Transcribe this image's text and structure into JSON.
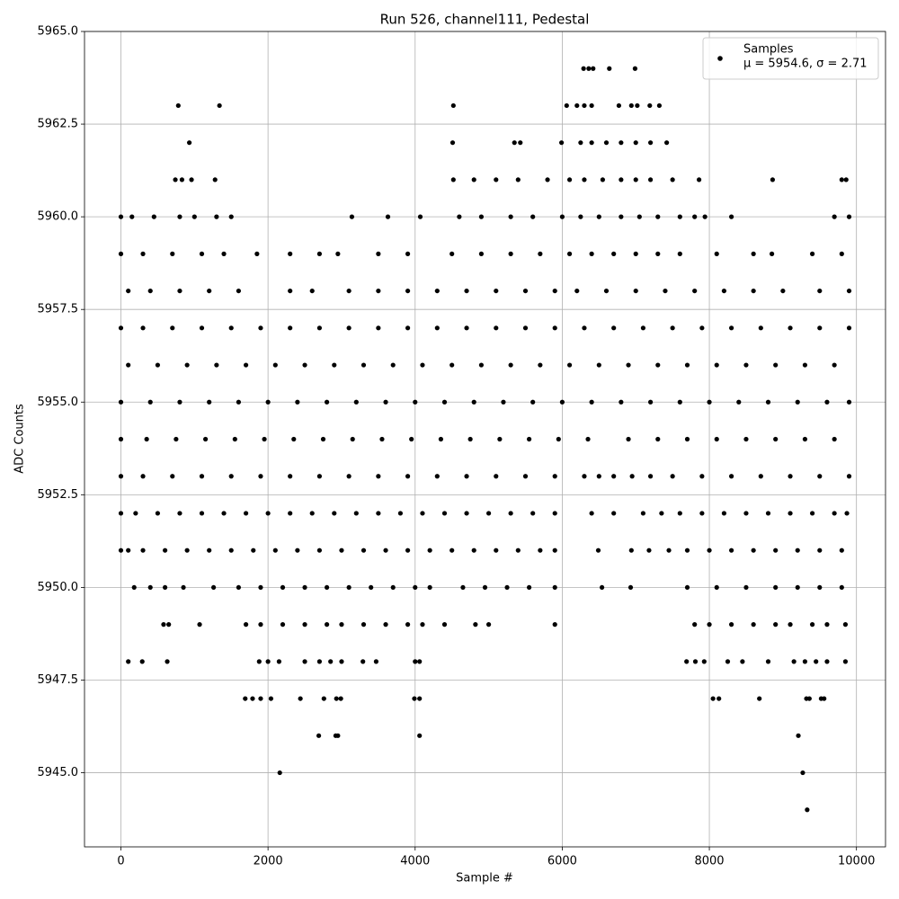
{
  "chart_data": {
    "type": "scatter",
    "title": "Run 526, channel111, Pedestal",
    "xlabel": "Sample #",
    "ylabel": "ADC Counts",
    "xlim": [
      -495,
      10395
    ],
    "ylim": [
      5943,
      5965
    ],
    "xticks": [
      0,
      2000,
      4000,
      6000,
      8000,
      10000
    ],
    "yticks": [
      {
        "value": 5945,
        "label": "5945.0"
      },
      {
        "value": 5947.5,
        "label": "5947.5"
      },
      {
        "value": 5950,
        "label": "5950.0"
      },
      {
        "value": 5952.5,
        "label": "5952.5"
      },
      {
        "value": 5955,
        "label": "5955.0"
      },
      {
        "value": 5957.5,
        "label": "5957.5"
      },
      {
        "value": 5960,
        "label": "5960.0"
      },
      {
        "value": 5962.5,
        "label": "5962.5"
      },
      {
        "value": 5965,
        "label": "5965.0"
      }
    ],
    "grid": true,
    "legend": "upper right",
    "legend_note": "μ = 5954.6, σ = 2.71",
    "series": [
      {
        "name": "Samples",
        "color": "#000000",
        "x": [
          6290,
          6360,
          6420,
          6640,
          6990,
          780,
          1340,
          4520,
          6060,
          6200,
          6300,
          6400,
          6770,
          6940,
          7020,
          7190,
          7320,
          930,
          4510,
          5350,
          5430,
          5990,
          6250,
          6400,
          6600,
          6800,
          7000,
          7200,
          7420,
          740,
          830,
          960,
          1280,
          4520,
          4800,
          5100,
          5400,
          5800,
          6100,
          6300,
          6550,
          6800,
          7000,
          7200,
          7500,
          7860,
          8860,
          9800,
          9860,
          0,
          150,
          450,
          800,
          1000,
          1300,
          1500,
          3140,
          3630,
          4070,
          4600,
          4900,
          5300,
          5600,
          6000,
          6250,
          6500,
          6800,
          7050,
          7300,
          7600,
          7800,
          7940,
          8300,
          9700,
          9900,
          0,
          300,
          700,
          1100,
          1400,
          1850,
          2300,
          2700,
          2950,
          3500,
          3900,
          4500,
          4900,
          5300,
          5700,
          6100,
          6400,
          6700,
          7000,
          7300,
          7600,
          8100,
          8600,
          8850,
          9400,
          9800,
          100,
          400,
          800,
          1200,
          1600,
          2300,
          2600,
          3100,
          3500,
          3900,
          4300,
          4700,
          5100,
          5500,
          5900,
          6200,
          6600,
          7000,
          7400,
          7800,
          8200,
          8600,
          9000,
          9500,
          9900,
          0,
          300,
          700,
          1100,
          1500,
          1900,
          2300,
          2700,
          3100,
          3500,
          3900,
          4300,
          4700,
          5100,
          5500,
          5900,
          6300,
          6700,
          7100,
          7500,
          7900,
          8300,
          8700,
          9100,
          9500,
          9900,
          100,
          500,
          900,
          1300,
          1700,
          2100,
          2500,
          2900,
          3300,
          3700,
          4100,
          4500,
          4900,
          5300,
          5700,
          6100,
          6500,
          6900,
          7300,
          7700,
          8100,
          8500,
          8900,
          9300,
          9700,
          0,
          400,
          800,
          1200,
          1600,
          2000,
          2400,
          2800,
          3200,
          3600,
          4000,
          4400,
          4800,
          5200,
          5600,
          6000,
          6400,
          6800,
          7200,
          7600,
          8000,
          8400,
          8800,
          9200,
          9600,
          9900,
          0,
          350,
          750,
          1150,
          1550,
          1950,
          2350,
          2750,
          3150,
          3550,
          3950,
          4350,
          4750,
          5150,
          5550,
          5950,
          6350,
          6900,
          7300,
          7700,
          8100,
          8500,
          8900,
          9300,
          9700,
          0,
          300,
          700,
          1100,
          1500,
          1900,
          2300,
          2700,
          3100,
          3500,
          3900,
          4300,
          4700,
          5100,
          5500,
          5900,
          6300,
          6500,
          6700,
          6950,
          7200,
          7500,
          7900,
          8300,
          8700,
          9100,
          9500,
          9900,
          0,
          200,
          500,
          800,
          1100,
          1400,
          1700,
          2000,
          2300,
          2600,
          2900,
          3200,
          3500,
          3800,
          4100,
          4400,
          4700,
          5000,
          5300,
          5600,
          5900,
          6400,
          6700,
          7100,
          7350,
          7600,
          7900,
          8200,
          8500,
          8800,
          9100,
          9400,
          9700,
          9870,
          0,
          100,
          300,
          600,
          900,
          1200,
          1500,
          1800,
          2100,
          2400,
          2700,
          3000,
          3300,
          3600,
          3900,
          4200,
          4500,
          4800,
          5100,
          5400,
          5700,
          5900,
          6490,
          6940,
          7180,
          7450,
          7700,
          8000,
          8300,
          8600,
          8900,
          9200,
          9500,
          9800,
          180,
          400,
          600,
          850,
          1260,
          1600,
          1900,
          2200,
          2500,
          2800,
          3100,
          3400,
          3700,
          4000,
          4200,
          4650,
          4950,
          5250,
          5550,
          5900,
          6540,
          6930,
          7700,
          8100,
          8500,
          8900,
          9200,
          9500,
          9800,
          580,
          650,
          1070,
          1700,
          1900,
          2200,
          2500,
          2800,
          3000,
          3300,
          3600,
          3900,
          4100,
          4400,
          4820,
          5000,
          5900,
          7800,
          8000,
          8300,
          8600,
          8900,
          9100,
          9400,
          9600,
          9850,
          100,
          290,
          630,
          1880,
          2000,
          2150,
          2500,
          2700,
          2850,
          3000,
          3290,
          3470,
          4000,
          4060,
          7690,
          7810,
          7930,
          8250,
          8450,
          8800,
          9150,
          9300,
          9450,
          9600,
          9850,
          1690,
          1790,
          1900,
          2040,
          2440,
          2760,
          2930,
          2990,
          3990,
          4060,
          8050,
          8130,
          8680,
          9320,
          9360,
          9520,
          9560,
          2690,
          2920,
          2950,
          4060,
          9210,
          2160,
          9270,
          9330
        ],
        "values": [
          5964,
          5964,
          5964,
          5964,
          5964,
          5963,
          5963,
          5963,
          5963,
          5963,
          5963,
          5963,
          5963,
          5963,
          5963,
          5963,
          5963,
          5962,
          5962,
          5962,
          5962,
          5962,
          5962,
          5962,
          5962,
          5962,
          5962,
          5962,
          5962,
          5961,
          5961,
          5961,
          5961,
          5961,
          5961,
          5961,
          5961,
          5961,
          5961,
          5961,
          5961,
          5961,
          5961,
          5961,
          5961,
          5961,
          5961,
          5961,
          5961,
          5960,
          5960,
          5960,
          5960,
          5960,
          5960,
          5960,
          5960,
          5960,
          5960,
          5960,
          5960,
          5960,
          5960,
          5960,
          5960,
          5960,
          5960,
          5960,
          5960,
          5960,
          5960,
          5960,
          5960,
          5960,
          5960,
          5959,
          5959,
          5959,
          5959,
          5959,
          5959,
          5959,
          5959,
          5959,
          5959,
          5959,
          5959,
          5959,
          5959,
          5959,
          5959,
          5959,
          5959,
          5959,
          5959,
          5959,
          5959,
          5959,
          5959,
          5959,
          5959,
          5958,
          5958,
          5958,
          5958,
          5958,
          5958,
          5958,
          5958,
          5958,
          5958,
          5958,
          5958,
          5958,
          5958,
          5958,
          5958,
          5958,
          5958,
          5958,
          5958,
          5958,
          5958,
          5958,
          5958,
          5958,
          5957,
          5957,
          5957,
          5957,
          5957,
          5957,
          5957,
          5957,
          5957,
          5957,
          5957,
          5957,
          5957,
          5957,
          5957,
          5957,
          5957,
          5957,
          5957,
          5957,
          5957,
          5957,
          5957,
          5957,
          5957,
          5957,
          5956,
          5956,
          5956,
          5956,
          5956,
          5956,
          5956,
          5956,
          5956,
          5956,
          5956,
          5956,
          5956,
          5956,
          5956,
          5956,
          5956,
          5956,
          5956,
          5956,
          5956,
          5956,
          5956,
          5956,
          5956,
          5955,
          5955,
          5955,
          5955,
          5955,
          5955,
          5955,
          5955,
          5955,
          5955,
          5955,
          5955,
          5955,
          5955,
          5955,
          5955,
          5955,
          5955,
          5955,
          5955,
          5955,
          5955,
          5955,
          5955,
          5955,
          5955,
          5954,
          5954,
          5954,
          5954,
          5954,
          5954,
          5954,
          5954,
          5954,
          5954,
          5954,
          5954,
          5954,
          5954,
          5954,
          5954,
          5954,
          5954,
          5954,
          5954,
          5954,
          5954,
          5954,
          5954,
          5954,
          5953,
          5953,
          5953,
          5953,
          5953,
          5953,
          5953,
          5953,
          5953,
          5953,
          5953,
          5953,
          5953,
          5953,
          5953,
          5953,
          5953,
          5953,
          5953,
          5953,
          5953,
          5953,
          5953,
          5953,
          5953,
          5953,
          5953,
          5953,
          5952,
          5952,
          5952,
          5952,
          5952,
          5952,
          5952,
          5952,
          5952,
          5952,
          5952,
          5952,
          5952,
          5952,
          5952,
          5952,
          5952,
          5952,
          5952,
          5952,
          5952,
          5952,
          5952,
          5952,
          5952,
          5952,
          5952,
          5952,
          5952,
          5952,
          5952,
          5952,
          5952,
          5952,
          5951,
          5951,
          5951,
          5951,
          5951,
          5951,
          5951,
          5951,
          5951,
          5951,
          5951,
          5951,
          5951,
          5951,
          5951,
          5951,
          5951,
          5951,
          5951,
          5951,
          5951,
          5951,
          5951,
          5951,
          5951,
          5951,
          5951,
          5951,
          5951,
          5951,
          5951,
          5951,
          5951,
          5951,
          5950,
          5950,
          5950,
          5950,
          5950,
          5950,
          5950,
          5950,
          5950,
          5950,
          5950,
          5950,
          5950,
          5950,
          5950,
          5950,
          5950,
          5950,
          5950,
          5950,
          5950,
          5950,
          5950,
          5950,
          5950,
          5950,
          5950,
          5950,
          5950,
          5949,
          5949,
          5949,
          5949,
          5949,
          5949,
          5949,
          5949,
          5949,
          5949,
          5949,
          5949,
          5949,
          5949,
          5949,
          5949,
          5949,
          5949,
          5949,
          5949,
          5949,
          5949,
          5949,
          5949,
          5949,
          5949,
          5948,
          5948,
          5948,
          5948,
          5948,
          5948,
          5948,
          5948,
          5948,
          5948,
          5948,
          5948,
          5948,
          5948,
          5948,
          5948,
          5948,
          5948,
          5948,
          5948,
          5948,
          5948,
          5948,
          5948,
          5948,
          5947,
          5947,
          5947,
          5947,
          5947,
          5947,
          5947,
          5947,
          5947,
          5947,
          5947,
          5947,
          5947,
          5947,
          5947,
          5947,
          5947,
          5946,
          5946,
          5946,
          5946,
          5946,
          5945,
          5945,
          5944
        ]
      }
    ]
  }
}
